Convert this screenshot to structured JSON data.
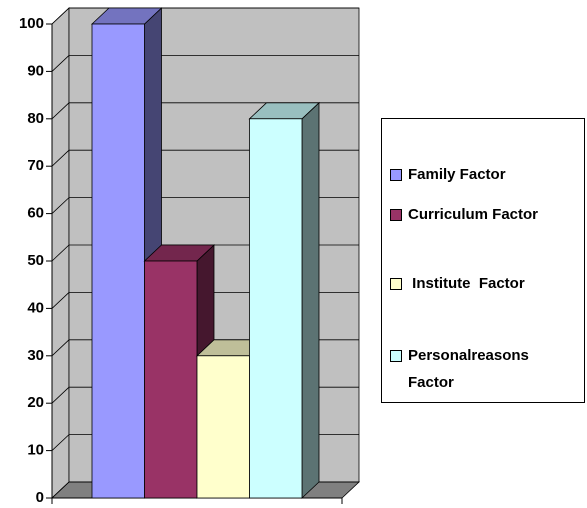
{
  "chart_data": {
    "type": "bar3d",
    "categories": [
      null
    ],
    "series": [
      {
        "name": "Family Factor",
        "color": "#9999ff",
        "values": [
          100
        ]
      },
      {
        "name": "Curriculum Factor",
        "color": "#993366",
        "values": [
          50
        ]
      },
      {
        "name": " Institute  Factor",
        "color": "#ffffcc",
        "values": [
          30
        ]
      },
      {
        "name": "Personalreasons Factor",
        "color": "#ccffff",
        "values": [
          80
        ]
      }
    ],
    "ylim": [
      0,
      100
    ],
    "yticks": [
      0,
      10,
      20,
      30,
      40,
      50,
      60,
      70,
      80,
      90,
      100
    ],
    "grid": true,
    "legend": "right"
  }
}
